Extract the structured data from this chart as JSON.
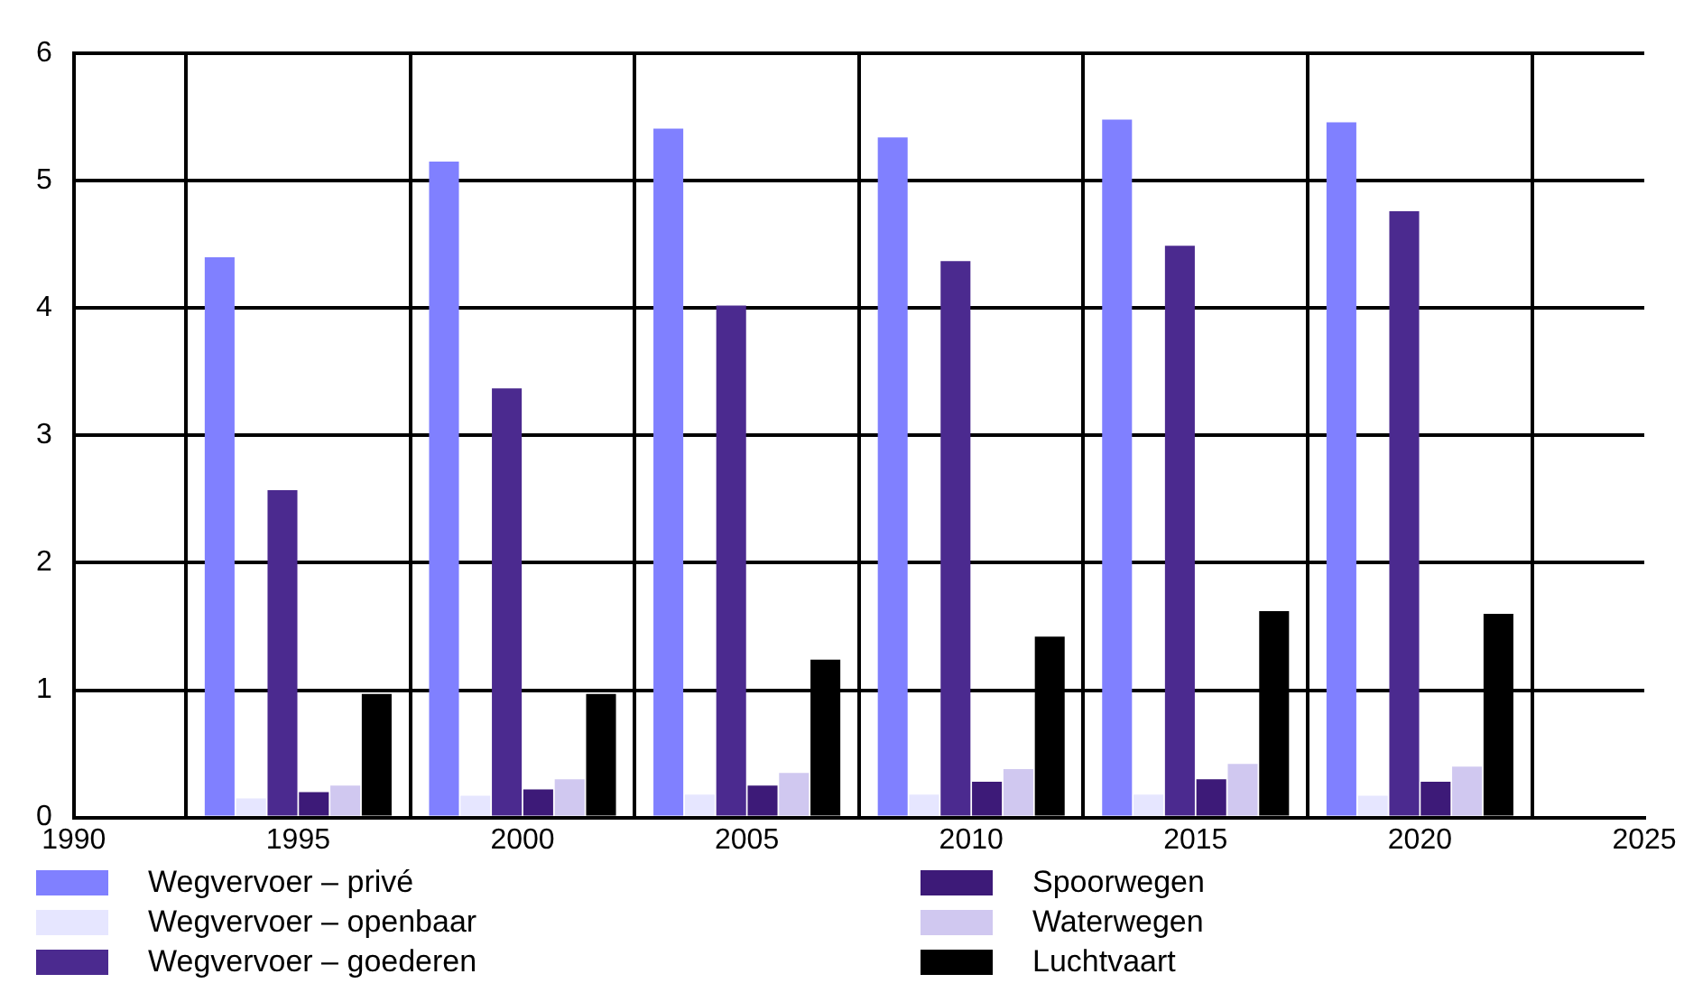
{
  "chart_data": {
    "type": "bar",
    "x": [
      1995,
      2000,
      2005,
      2010,
      2015,
      2020
    ],
    "series": [
      {
        "name": "Wegvervoer – privé",
        "color": "#8080ff",
        "values": [
          4.4,
          5.15,
          5.41,
          5.34,
          5.48,
          5.46
        ]
      },
      {
        "name": "Wegvervoer – openbaar",
        "color": "#e6e6ff",
        "values": [
          0.15,
          0.17,
          0.18,
          0.18,
          0.18,
          0.17
        ]
      },
      {
        "name": "Wegvervoer – goederen",
        "color": "#4b2a8f",
        "values": [
          2.57,
          3.37,
          4.02,
          4.37,
          4.49,
          4.76
        ]
      },
      {
        "name": "Spoorwegen",
        "color": "#3d1a78",
        "values": [
          0.2,
          0.22,
          0.25,
          0.28,
          0.3,
          0.28
        ]
      },
      {
        "name": "Waterwegen",
        "color": "#d0c8f0",
        "values": [
          0.25,
          0.3,
          0.35,
          0.38,
          0.42,
          0.4
        ]
      },
      {
        "name": "Luchtvaart",
        "color": "#000000",
        "values": [
          0.97,
          0.97,
          1.24,
          1.42,
          1.62,
          1.6
        ]
      }
    ],
    "xlim": [
      1990,
      2025
    ],
    "xticks": [
      1990,
      1995,
      2000,
      2005,
      2010,
      2015,
      2020,
      2025
    ],
    "ylim": [
      0,
      6
    ],
    "yticks": [
      0,
      1,
      2,
      3,
      4,
      5,
      6
    ],
    "grid": true,
    "legend": "bottom"
  }
}
